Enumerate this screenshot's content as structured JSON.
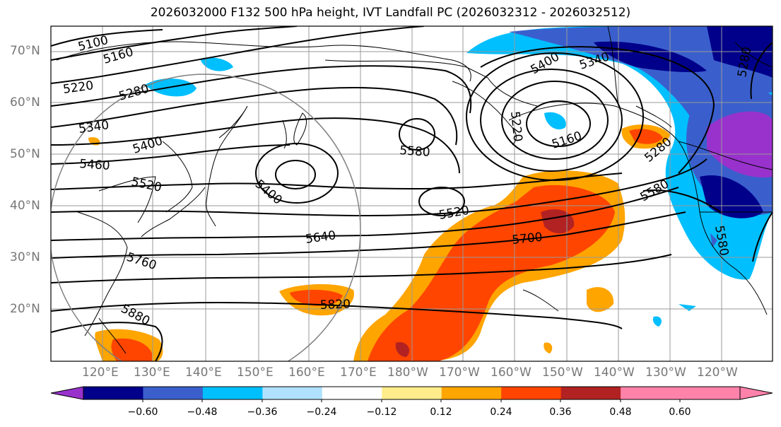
{
  "title": "2026032000 F132 500 hPa height, IVT Landfall PC (2026032312 - 2026032512)",
  "lat_labels": [
    "70°N",
    "60°N",
    "50°N",
    "40°N",
    "30°N",
    "20°N"
  ],
  "lon_labels": [
    "120°E",
    "130°E",
    "140°E",
    "150°E",
    "160°E",
    "170°E",
    "180°W",
    "170°W",
    "160°W",
    "150°W",
    "140°W",
    "130°W",
    "120°W"
  ],
  "contour_labels": [
    "5100",
    "5160",
    "5220",
    "5280",
    "5340",
    "5400",
    "5460",
    "5520",
    "5580",
    "5640",
    "5700",
    "5760",
    "5820",
    "5880",
    "5400",
    "5520",
    "5580",
    "5160",
    "5220",
    "5280",
    "5340",
    "5400",
    "5580",
    "5280"
  ],
  "colorbar": {
    "ticks": [
      "−0.60",
      "−0.48",
      "−0.36",
      "−0.24",
      "−0.12",
      "0.12",
      "0.24",
      "0.36",
      "0.48",
      "0.60"
    ],
    "colors": [
      "#9932cc",
      "#00008b",
      "#3a5fcd",
      "#00bfff",
      "#b0e2ff",
      "#ffffff",
      "#ffec8b",
      "#ffa500",
      "#ff4500",
      "#b22222",
      "#ff82ab",
      "#ff82ab"
    ]
  },
  "colors": {
    "negative_dark": "#00008b",
    "negative_mid": "#3a5fcd",
    "negative_light": "#00bfff",
    "negative_purple": "#9932cc",
    "positive_orange": "#ffa500",
    "positive_red": "#ff4500",
    "positive_dark_red": "#b22222",
    "grid": "#999999"
  }
}
